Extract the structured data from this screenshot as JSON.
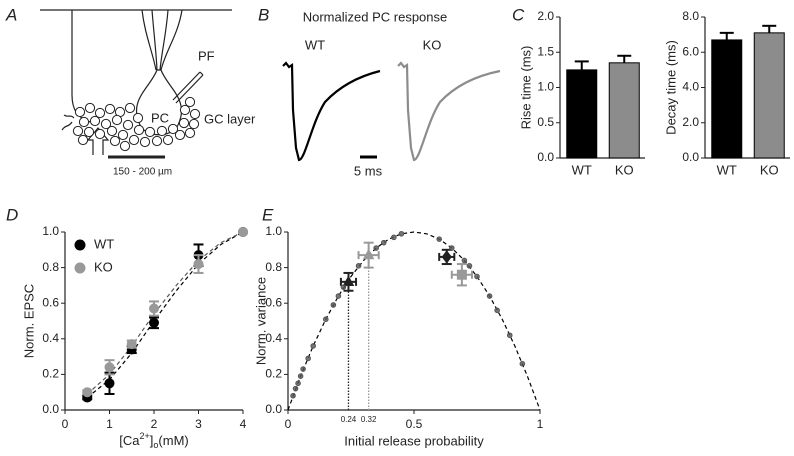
{
  "panels": {
    "A": {
      "label": "A",
      "pf": "PF",
      "pc": "PC",
      "gc_layer": "GC layer",
      "scale": "150 - 200 µm"
    },
    "B": {
      "label": "B",
      "title": "Normalized PC response",
      "wt": "WT",
      "ko": "KO",
      "scale": "5 ms"
    },
    "C": {
      "label": "C"
    },
    "D": {
      "label": "D"
    },
    "E": {
      "label": "E"
    }
  },
  "chart_data": [
    {
      "type": "bar",
      "ylabel": "Rise time (ms)",
      "categories": [
        "WT",
        "KO"
      ],
      "values": [
        1.25,
        1.35
      ],
      "errors": [
        0.12,
        0.1
      ],
      "colors": [
        "#000000",
        "#8c8c8c"
      ],
      "ylim": [
        0,
        2
      ],
      "yticks": [
        {
          "value": 0,
          "label": "0.0"
        },
        0.5,
        {
          "value": 1,
          "label": "1.0"
        },
        1.5,
        {
          "value": 2,
          "label": "2.0"
        }
      ]
    },
    {
      "type": "bar",
      "ylabel": "Decay time (ms)",
      "categories": [
        "WT",
        "KO"
      ],
      "values": [
        6.7,
        7.1
      ],
      "errors": [
        0.4,
        0.4
      ],
      "colors": [
        "#000000",
        "#8c8c8c"
      ],
      "ylim": [
        0,
        8
      ],
      "yticks": [
        {
          "value": 0,
          "label": "0.0"
        },
        {
          "value": 2,
          "label": "2.0"
        },
        {
          "value": 4,
          "label": "4.0"
        },
        {
          "value": 6,
          "label": "6.0"
        },
        {
          "value": 8,
          "label": "8.0"
        }
      ]
    },
    {
      "type": "scatter",
      "ylabel": "Norm. EPSC",
      "xlabel_parts": [
        "[Ca",
        "2+",
        "]",
        "o",
        "(mM)"
      ],
      "xlim": [
        0,
        4
      ],
      "ylim": [
        0,
        1
      ],
      "xticks": [
        0,
        1,
        2,
        3,
        4
      ],
      "yticks": [
        {
          "value": 0,
          "label": "0.0"
        },
        0.2,
        0.4,
        0.6,
        0.8,
        {
          "value": 1,
          "label": "1.0"
        }
      ],
      "legend": "upper left",
      "series": [
        {
          "name": "WT",
          "color": "#000000",
          "marker": "circle",
          "x": [
            0.5,
            1,
            1.5,
            2,
            3,
            4
          ],
          "values": [
            0.07,
            0.15,
            0.34,
            0.49,
            0.87,
            1.0
          ],
          "errors": [
            0.01,
            0.06,
            0.02,
            0.03,
            0.06,
            0
          ]
        },
        {
          "name": "KO",
          "color": "#999999",
          "marker": "circle",
          "x": [
            0.5,
            1,
            1.5,
            2,
            3,
            4
          ],
          "values": [
            0.1,
            0.24,
            0.37,
            0.57,
            0.82,
            1.0
          ],
          "errors": [
            0.01,
            0.04,
            0.02,
            0.04,
            0.05,
            0
          ]
        }
      ],
      "fits": [
        {
          "color": "#000000",
          "x": [
            0.5,
            1,
            1.5,
            2,
            2.5,
            3,
            3.5,
            4
          ],
          "values": [
            0.07,
            0.17,
            0.32,
            0.5,
            0.67,
            0.82,
            0.93,
            1.0
          ]
        },
        {
          "color": "#555555",
          "x": [
            0.5,
            1,
            1.5,
            2,
            2.5,
            3,
            3.5,
            4
          ],
          "values": [
            0.09,
            0.2,
            0.36,
            0.54,
            0.7,
            0.84,
            0.94,
            1.0
          ]
        }
      ]
    },
    {
      "type": "scatter",
      "ylabel": "Norm. variance",
      "xlabel": "Initial release probability",
      "xlim": [
        0,
        1
      ],
      "ylim": [
        0,
        1
      ],
      "xticks": [
        0,
        0.5,
        1
      ],
      "minor_xticks": [
        0.24,
        0.32
      ],
      "yticks": [
        {
          "value": 0,
          "label": "0.0"
        },
        0.2,
        0.4,
        0.6,
        0.8,
        {
          "value": 1,
          "label": "1.0"
        }
      ],
      "series": [
        {
          "color": "#222222",
          "marker": [
            "triangle",
            "diamond"
          ],
          "x": [
            0.24,
            0.63
          ],
          "values": [
            0.72,
            0.86
          ],
          "errors": [
            0.05,
            0.04
          ],
          "xerrors": [
            0.03,
            0.03
          ]
        },
        {
          "color": "#999999",
          "marker": [
            "triangle",
            "square"
          ],
          "x": [
            0.32,
            0.69
          ],
          "values": [
            0.87,
            0.76
          ],
          "errors": [
            0.07,
            0.06
          ],
          "xerrors": [
            0.04,
            0.04
          ]
        },
        {
          "color": "#555555",
          "marker": "small",
          "x": [
            0.02,
            0.03,
            0.04,
            0.05,
            0.06,
            0.08,
            0.1,
            0.15,
            0.18,
            0.2,
            0.22,
            0.28,
            0.35,
            0.38,
            0.42,
            0.45,
            0.6,
            0.65,
            0.7,
            0.72,
            0.75,
            0.8,
            0.83,
            0.88,
            0.93
          ],
          "values": [
            0.08,
            0.12,
            0.15,
            0.19,
            0.23,
            0.29,
            0.36,
            0.51,
            0.59,
            0.64,
            0.69,
            0.81,
            0.91,
            0.94,
            0.97,
            0.99,
            0.96,
            0.91,
            0.84,
            0.81,
            0.75,
            0.64,
            0.56,
            0.42,
            0.26
          ]
        }
      ],
      "fits": [
        {
          "color": "#000000",
          "x": [
            0,
            0.05,
            0.1,
            0.15,
            0.2,
            0.25,
            0.3,
            0.35,
            0.4,
            0.45,
            0.5,
            0.55,
            0.6,
            0.65,
            0.7,
            0.75,
            0.8,
            0.85,
            0.9,
            0.95,
            1
          ],
          "values": [
            0,
            0.19,
            0.36,
            0.51,
            0.64,
            0.75,
            0.84,
            0.91,
            0.96,
            0.99,
            1,
            0.99,
            0.96,
            0.91,
            0.84,
            0.75,
            0.64,
            0.51,
            0.36,
            0.19,
            0
          ]
        }
      ]
    }
  ]
}
